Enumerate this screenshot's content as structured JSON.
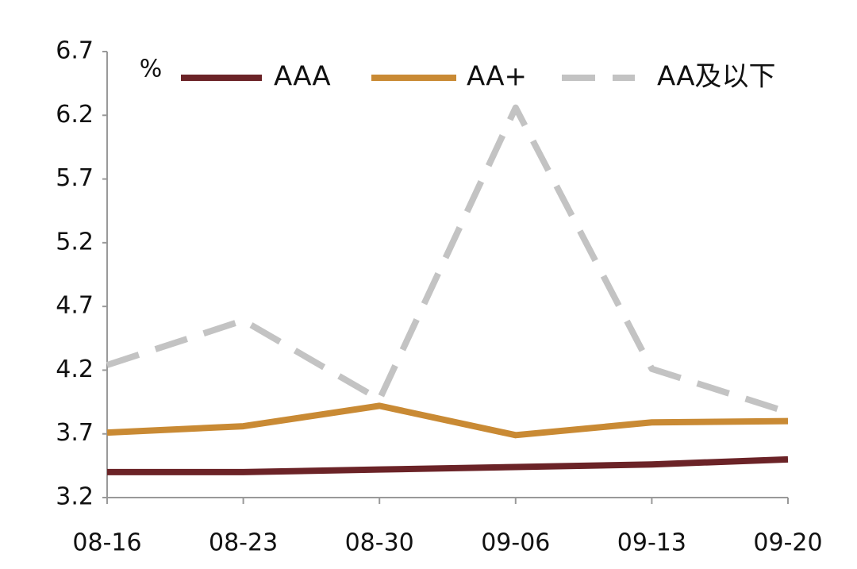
{
  "chart_data": {
    "type": "line",
    "unit": "%",
    "categories": [
      "08-16",
      "08-23",
      "08-30",
      "09-06",
      "09-13",
      "09-20"
    ],
    "series": [
      {
        "name": "AAA",
        "color": "#6b2327",
        "dash": false,
        "values": [
          3.4,
          3.4,
          3.42,
          3.44,
          3.46,
          3.5
        ]
      },
      {
        "name": "AA+",
        "color": "#c98a34",
        "dash": false,
        "values": [
          3.71,
          3.76,
          3.92,
          3.69,
          3.79,
          3.8
        ]
      },
      {
        "name": "AA及以下",
        "color": "#c3c3c3",
        "dash": true,
        "values": [
          4.24,
          4.59,
          3.97,
          6.26,
          4.21,
          3.87
        ]
      }
    ],
    "ylim": [
      3.2,
      6.7
    ],
    "yticks": [
      3.2,
      3.7,
      4.2,
      4.7,
      5.2,
      5.7,
      6.2,
      6.7
    ],
    "grid": false,
    "legend": "top"
  }
}
